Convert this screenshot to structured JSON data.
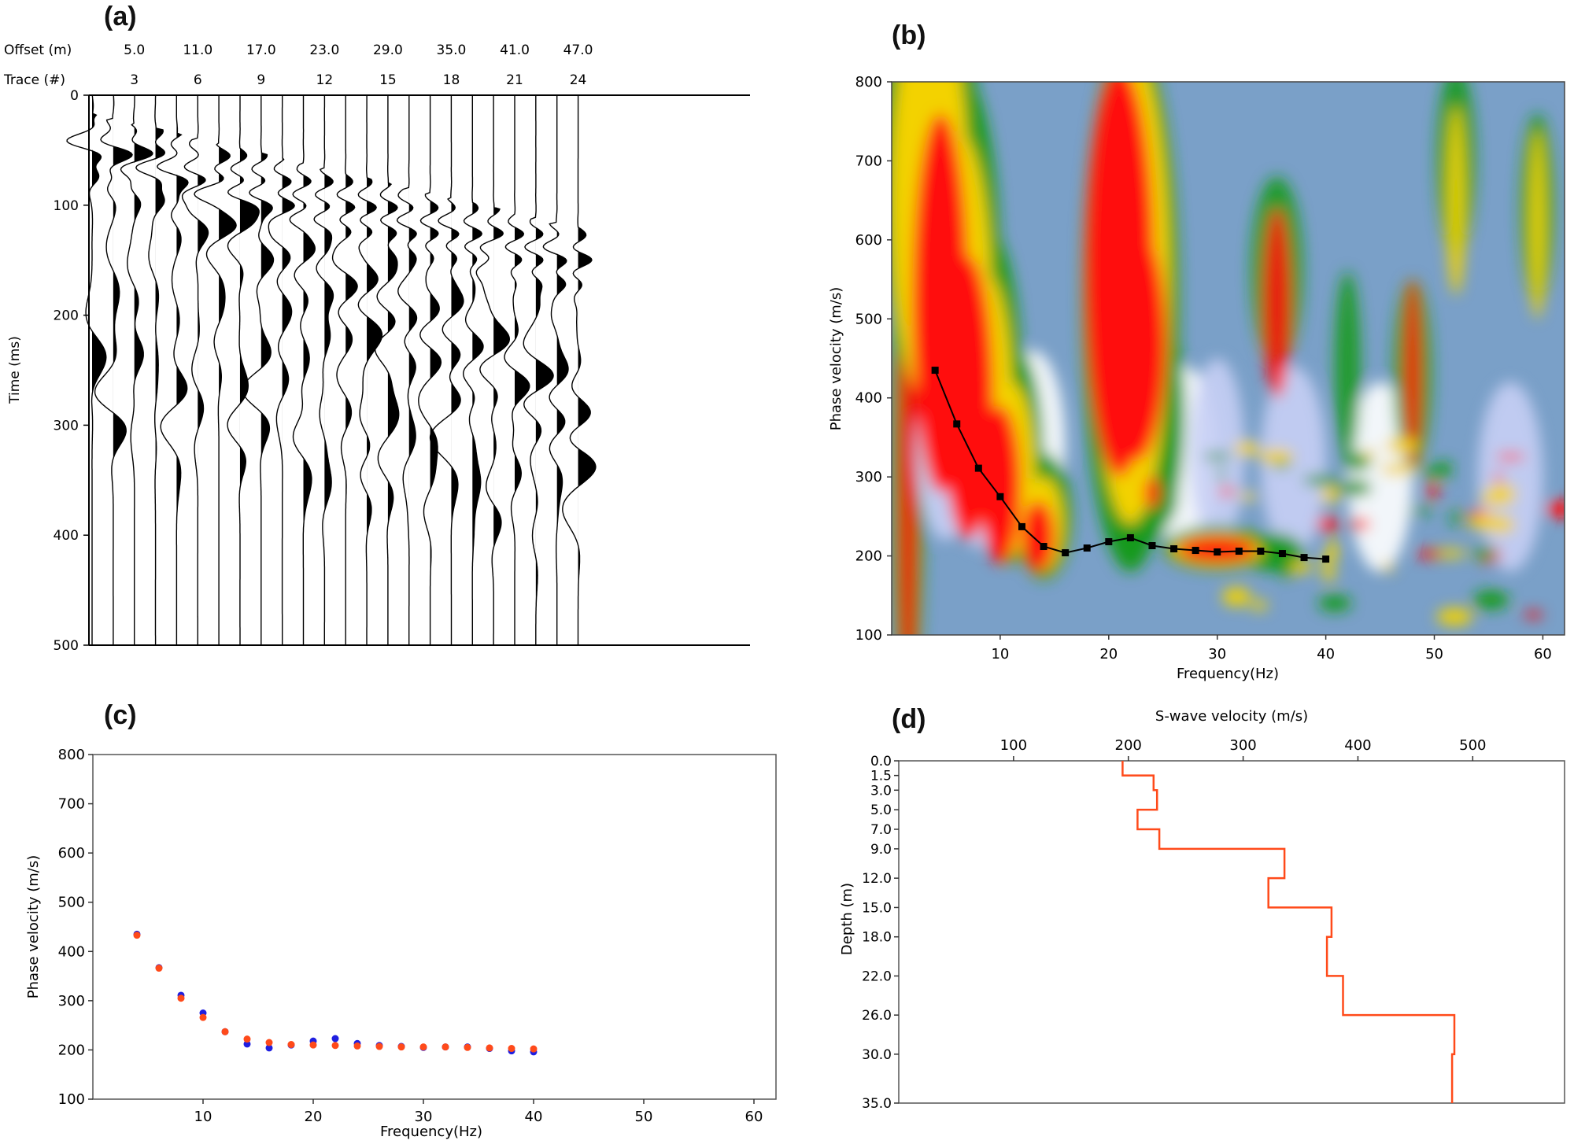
{
  "panels": {
    "a": {
      "label": "(a)"
    },
    "b": {
      "label": "(b)"
    },
    "c": {
      "label": "(c)"
    },
    "d": {
      "label": "(d)"
    }
  },
  "colors": {
    "trace": "#000000",
    "curve": "#000000",
    "observed": "#1f1fe0",
    "theoretical": "#ff4a1a",
    "profile": "#ff4a1a",
    "spectrum_low": "#7aa0c8",
    "spectrum_mid_blue": "#c8cff5",
    "spectrum_white": "#ffffff",
    "spectrum_green": "#159a1e",
    "spectrum_yellow": "#f3d200",
    "spectrum_red": "#ff1010"
  },
  "chart_data": [
    {
      "id": "a",
      "type": "seismic-record",
      "title": "",
      "offset_row_label": "Offset (m)",
      "trace_row_label": "Trace (#)",
      "offset_ticks": [
        "5.0",
        "11.0",
        "17.0",
        "23.0",
        "29.0",
        "35.0",
        "41.0",
        "47.0"
      ],
      "trace_ticks": [
        "3",
        "6",
        "9",
        "12",
        "15",
        "18",
        "21",
        "24"
      ],
      "trace_count": 24,
      "first_offset_m": 1.0,
      "offset_spacing_m": 2.0,
      "ylabel": "Time (ms)",
      "ylim": [
        0,
        500
      ],
      "yticks": [
        0,
        100,
        200,
        300,
        400,
        500
      ],
      "first_arrival_velocity_m_s": 380
    },
    {
      "id": "b",
      "type": "heatmap",
      "title": "",
      "xlabel": "Frequency(Hz)",
      "ylabel": "Phase velocity (m/s)",
      "xlim": [
        0,
        62
      ],
      "ylim": [
        100,
        800
      ],
      "xticks": [
        10,
        20,
        30,
        40,
        50,
        60
      ],
      "yticks": [
        100,
        200,
        300,
        400,
        500,
        600,
        700,
        800
      ],
      "dispersion_curve": {
        "x": [
          4,
          6,
          8,
          10,
          12,
          14,
          16,
          18,
          20,
          22,
          24,
          26,
          28,
          30,
          32,
          34,
          36,
          38,
          40
        ],
        "y": [
          435,
          367,
          311,
          275,
          237,
          212,
          204,
          210,
          218,
          223,
          213,
          209,
          207,
          205,
          206,
          206,
          203,
          198,
          196
        ]
      }
    },
    {
      "id": "c",
      "type": "scatter",
      "title": "",
      "xlabel": "Frequency(Hz)",
      "ylabel": "Phase velocity (m/s)",
      "xlim": [
        0,
        62
      ],
      "ylim": [
        100,
        800
      ],
      "xticks": [
        10,
        20,
        30,
        40,
        50,
        60
      ],
      "yticks": [
        100,
        200,
        300,
        400,
        500,
        600,
        700,
        800
      ],
      "series": [
        {
          "x": [
            4,
            6,
            8,
            10,
            12,
            14,
            16,
            18,
            20,
            22,
            24,
            26,
            28,
            30,
            32,
            34,
            36,
            38,
            40
          ],
          "y": [
            435,
            367,
            311,
            275,
            237,
            212,
            204,
            210,
            218,
            223,
            213,
            209,
            207,
            205,
            206,
            206,
            203,
            198,
            196
          ]
        },
        {
          "x": [
            4,
            6,
            8,
            10,
            12,
            14,
            16,
            18,
            20,
            22,
            24,
            26,
            28,
            30,
            32,
            34,
            36,
            38,
            40
          ],
          "y": [
            433,
            366,
            305,
            266,
            237,
            222,
            215,
            211,
            210,
            209,
            208,
            207,
            206,
            206,
            206,
            205,
            204,
            203,
            202
          ]
        }
      ]
    },
    {
      "id": "d",
      "type": "line",
      "title": "",
      "xlabel": "S-wave velocity (m/s)",
      "ylabel": "Depth (m)",
      "xlim": [
        0,
        580
      ],
      "xticks": [
        100,
        200,
        300,
        400,
        500
      ],
      "ylim": [
        0,
        35
      ],
      "yticks": [
        "0.0",
        "1.5",
        "3.0",
        "5.0",
        "7.0",
        "9.0",
        "12.0",
        "15.0",
        "18.0",
        "22.0",
        "26.0",
        "30.0",
        "35.0"
      ],
      "layers": [
        {
          "top": 0.0,
          "bottom": 1.5,
          "vs": 195
        },
        {
          "top": 1.5,
          "bottom": 3.0,
          "vs": 222
        },
        {
          "top": 3.0,
          "bottom": 5.0,
          "vs": 225
        },
        {
          "top": 5.0,
          "bottom": 7.0,
          "vs": 208
        },
        {
          "top": 7.0,
          "bottom": 9.0,
          "vs": 227
        },
        {
          "top": 9.0,
          "bottom": 12.0,
          "vs": 336
        },
        {
          "top": 12.0,
          "bottom": 15.0,
          "vs": 322
        },
        {
          "top": 15.0,
          "bottom": 18.0,
          "vs": 377
        },
        {
          "top": 18.0,
          "bottom": 22.0,
          "vs": 373
        },
        {
          "top": 22.0,
          "bottom": 26.0,
          "vs": 387
        },
        {
          "top": 26.0,
          "bottom": 30.0,
          "vs": 484
        },
        {
          "top": 30.0,
          "bottom": 35.0,
          "vs": 482
        }
      ]
    }
  ]
}
